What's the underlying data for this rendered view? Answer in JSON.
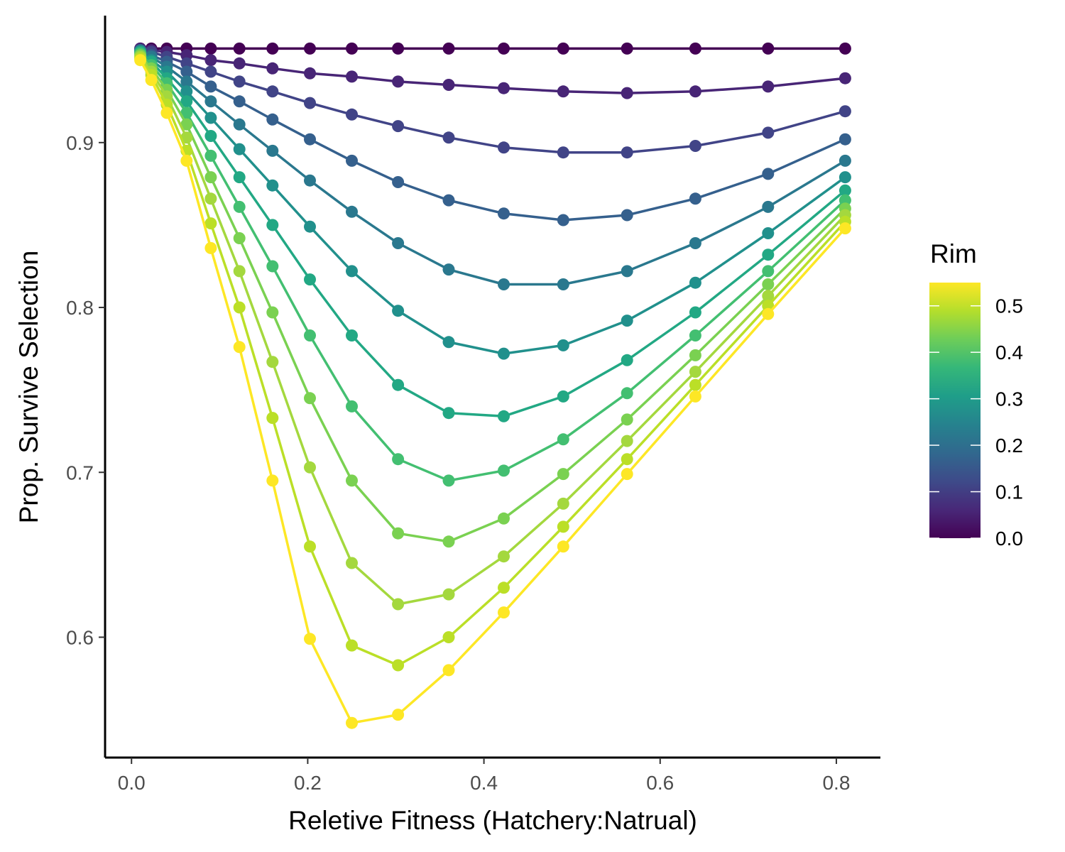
{
  "chart_data": {
    "type": "line",
    "title": "",
    "xlabel": "Reletive Fitness (Hatchery:Natrual)",
    "ylabel": "Prop. Survive Selection",
    "xlim": [
      -0.03,
      0.85
    ],
    "ylim": [
      0.527,
      0.977
    ],
    "x_ticks": [
      0.0,
      0.2,
      0.4,
      0.6,
      0.8
    ],
    "x_tick_labels": [
      "0.0",
      "0.2",
      "0.4",
      "0.6",
      "0.8"
    ],
    "y_ticks": [
      0.6,
      0.7,
      0.8,
      0.9
    ],
    "y_tick_labels": [
      "0.6",
      "0.7",
      "0.8",
      "0.9"
    ],
    "grid": false,
    "markers": true,
    "x": [
      0.01,
      0.0225,
      0.04,
      0.0625,
      0.09,
      0.1225,
      0.16,
      0.2025,
      0.25,
      0.3025,
      0.36,
      0.4225,
      0.49,
      0.5625,
      0.64,
      0.7225,
      0.81
    ],
    "series": [
      {
        "rim": 0.0,
        "values": [
          0.957,
          0.957,
          0.957,
          0.957,
          0.957,
          0.957,
          0.957,
          0.957,
          0.957,
          0.957,
          0.957,
          0.957,
          0.957,
          0.957,
          0.957,
          0.957,
          0.957
        ]
      },
      {
        "rim": 0.0367,
        "values": [
          0.957,
          0.956,
          0.955,
          0.953,
          0.95,
          0.948,
          0.945,
          0.942,
          0.94,
          0.937,
          0.935,
          0.933,
          0.931,
          0.93,
          0.931,
          0.934,
          0.939
        ]
      },
      {
        "rim": 0.0733,
        "values": [
          0.956,
          0.955,
          0.952,
          0.948,
          0.943,
          0.937,
          0.931,
          0.924,
          0.917,
          0.91,
          0.903,
          0.897,
          0.894,
          0.894,
          0.898,
          0.906,
          0.919
        ]
      },
      {
        "rim": 0.11,
        "values": [
          0.956,
          0.953,
          0.949,
          0.943,
          0.934,
          0.925,
          0.914,
          0.902,
          0.889,
          0.876,
          0.865,
          0.857,
          0.853,
          0.856,
          0.866,
          0.881,
          0.902
        ]
      },
      {
        "rim": 0.1467,
        "values": [
          0.956,
          0.952,
          0.946,
          0.937,
          0.925,
          0.911,
          0.895,
          0.877,
          0.858,
          0.839,
          0.823,
          0.814,
          0.814,
          0.822,
          0.839,
          0.861,
          0.889
        ]
      },
      {
        "rim": 0.1833,
        "values": [
          0.955,
          0.95,
          0.943,
          0.931,
          0.915,
          0.896,
          0.874,
          0.849,
          0.822,
          0.798,
          0.779,
          0.772,
          0.777,
          0.792,
          0.815,
          0.845,
          0.879
        ]
      },
      {
        "rim": 0.22,
        "values": [
          0.955,
          0.949,
          0.939,
          0.925,
          0.904,
          0.879,
          0.85,
          0.817,
          0.783,
          0.753,
          0.736,
          0.734,
          0.746,
          0.768,
          0.797,
          0.832,
          0.871
        ]
      },
      {
        "rim": 0.2567,
        "values": [
          0.954,
          0.947,
          0.936,
          0.918,
          0.892,
          0.861,
          0.825,
          0.783,
          0.74,
          0.708,
          0.695,
          0.701,
          0.72,
          0.748,
          0.783,
          0.822,
          0.865
        ]
      },
      {
        "rim": 0.2933,
        "values": [
          0.953,
          0.945,
          0.932,
          0.911,
          0.879,
          0.842,
          0.797,
          0.745,
          0.695,
          0.663,
          0.658,
          0.672,
          0.699,
          0.732,
          0.771,
          0.814,
          0.86
        ]
      },
      {
        "rim": 0.33,
        "values": [
          0.952,
          0.943,
          0.928,
          0.903,
          0.866,
          0.822,
          0.767,
          0.703,
          0.645,
          0.62,
          0.626,
          0.649,
          0.681,
          0.719,
          0.761,
          0.807,
          0.856
        ]
      },
      {
        "rim": 0.3667,
        "values": [
          0.951,
          0.941,
          0.923,
          0.895,
          0.851,
          0.8,
          0.733,
          0.655,
          0.595,
          0.583,
          0.6,
          0.63,
          0.667,
          0.708,
          0.753,
          0.801,
          0.852
        ]
      },
      {
        "rim": 0.4033,
        "values": [
          0.95,
          0.938,
          0.918,
          0.889,
          0.836,
          0.776,
          0.695,
          0.599,
          0.548,
          0.553,
          0.58,
          0.615,
          0.655,
          0.699,
          0.746,
          0.796,
          0.848
        ]
      }
    ],
    "legend": {
      "title": "Rim",
      "placement": "right",
      "type": "colorbar",
      "scale": "viridis",
      "range": [
        0.0,
        0.55
      ],
      "labels": [
        "0.5",
        "0.4",
        "0.3",
        "0.2",
        "0.1",
        "0.0"
      ],
      "ticks": [
        0.5,
        0.4,
        0.3,
        0.2,
        0.1,
        0.0
      ]
    },
    "colors": [
      "#440154",
      "#482576",
      "#414487",
      "#35608D",
      "#2A788E",
      "#21908C",
      "#22A884",
      "#43BF71",
      "#7AD151",
      "#A4D83E",
      "#BBDF27",
      "#FDE725"
    ]
  }
}
